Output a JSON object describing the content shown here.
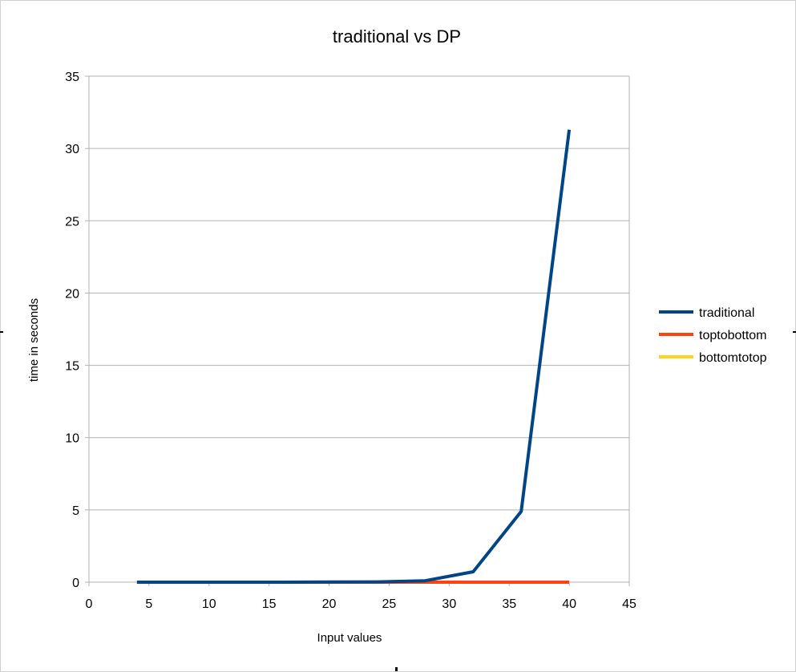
{
  "chart_data": {
    "type": "line",
    "title": "traditional vs DP",
    "xlabel": "Input values",
    "ylabel": "time in seconds",
    "xlim": [
      0,
      45
    ],
    "ylim": [
      0,
      35
    ],
    "xticks": [
      0,
      5,
      10,
      15,
      20,
      25,
      30,
      35,
      40,
      45
    ],
    "yticks": [
      0,
      5,
      10,
      15,
      20,
      25,
      30,
      35
    ],
    "grid": true,
    "legend_position": "right",
    "x": [
      4,
      8,
      12,
      16,
      20,
      24,
      28,
      32,
      36,
      40
    ],
    "series": [
      {
        "name": "traditional",
        "color": "#004586",
        "values": [
          0,
          0,
          0,
          0,
          0.01,
          0.02,
          0.1,
          0.72,
          4.9,
          31.3
        ]
      },
      {
        "name": "toptobottom",
        "color": "#ff420e",
        "values": [
          0,
          0,
          0,
          0,
          0,
          0,
          0,
          0,
          0,
          0
        ]
      },
      {
        "name": "bottomtotop",
        "color": "#ffd320",
        "values": [
          0,
          0,
          0,
          0,
          0,
          0,
          0,
          0,
          0,
          0
        ]
      }
    ]
  }
}
